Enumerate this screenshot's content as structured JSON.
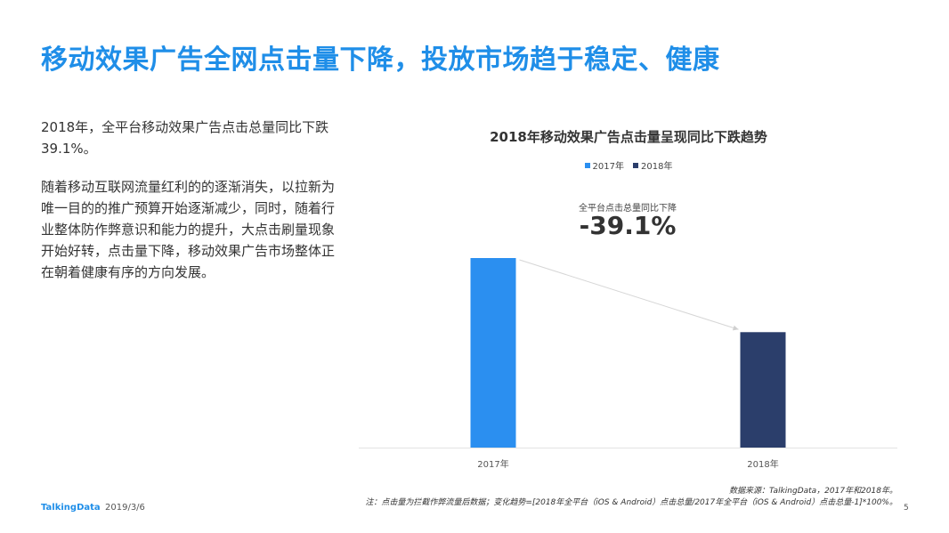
{
  "page": {
    "title": "移动效果广告全网点击量下降，投放市场趋于稳定、健康",
    "paragraphs": [
      "2018年，全平台移动效果广告点击总量同比下跌39.1%。",
      "随着移动互联网流量红利的的逐渐消失，以拉新为唯一目的的推广预算开始逐渐减少，同时，随着行业整体防作弊意识和能力的提升，大点击刷量现象开始好转，点击量下降，移动效果广告市场整体正在朝着健康有序的方向发展。"
    ],
    "source_line1": "数据来源：TalkingData，2017年和2018年。",
    "source_line2": "注：点击量为拦截作弊流量后数据；变化趋势=[2018年全平台（iOS & Android）点击总量/2017年全平台（iOS & Android）点击总量-1]*100%。",
    "brand": "TalkingData",
    "date": "2019/3/6",
    "page_number": "5"
  },
  "chart_data": {
    "type": "bar",
    "title": "2018年移动效果广告点击量呈现同比下跌趋势",
    "categories": [
      "2017年",
      "2018年"
    ],
    "series": [
      {
        "name": "2017年",
        "values": [
          1,
          null
        ],
        "color": "#2b8ff0"
      },
      {
        "name": "2018年",
        "values": [
          null,
          0.609
        ],
        "color": "#2b3e6b"
      }
    ],
    "values": [
      1,
      0.609
    ],
    "annotation_label": "全平台点击总量同比下降",
    "annotation_value": "-39.1%",
    "ylim": [
      0,
      1.23
    ],
    "grid": false,
    "legend_position": "top-center",
    "trend_arrow": true
  }
}
